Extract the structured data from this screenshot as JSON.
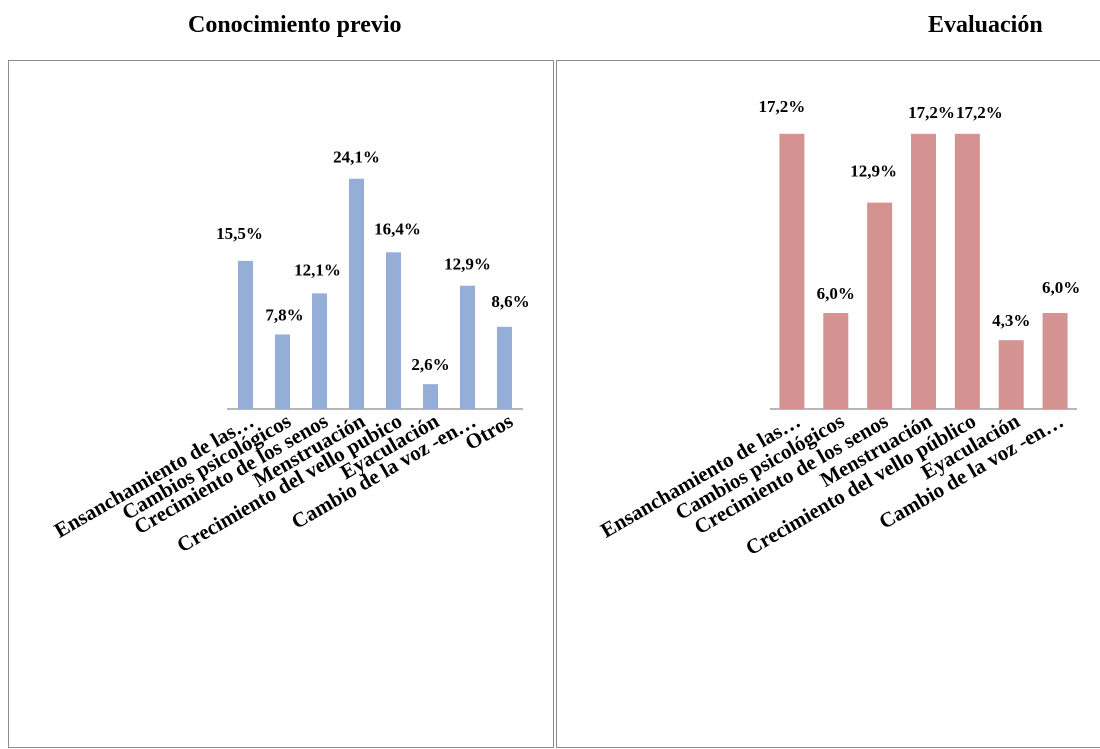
{
  "chart_data": [
    {
      "type": "bar",
      "title": "Conocimiento previo",
      "categories": [
        "Ensanchamiento de las…",
        "Cambios psicológicos",
        "Crecimiento de los senos",
        "Menstruación",
        "Crecimiento del vello pubico",
        "Eyaculación",
        "Cambio de la voz -en…",
        "Otros"
      ],
      "values": [
        15.5,
        7.8,
        12.1,
        24.1,
        16.4,
        2.6,
        12.9,
        8.6
      ],
      "data_labels": [
        "15,5%",
        "7,8%",
        "12,1%",
        "24,1%",
        "16,4%",
        "2,6%",
        "12,9%",
        "8,6%"
      ],
      "color": "#95aed8",
      "ylim": [
        0,
        27
      ],
      "grid": false,
      "legend": "none"
    },
    {
      "type": "bar",
      "title": "Evaluación",
      "categories": [
        "Ensanchamiento de las…",
        "Cambios psicológicos",
        "Crecimiento de los senos",
        "Menstruación",
        "Crecimiento del vello público",
        "Eyaculación",
        "Cambio de la voz -en…"
      ],
      "values": [
        17.2,
        6.0,
        12.9,
        17.2,
        17.2,
        4.3,
        6.0
      ],
      "data_labels": [
        "17,2%",
        "6,0%",
        "12,9%",
        "17,2%",
        "17,2%",
        "4,3%",
        "6,0%"
      ],
      "color": "#d49391",
      "ylim": [
        0,
        18
      ],
      "grid": false,
      "legend": "none"
    }
  ]
}
